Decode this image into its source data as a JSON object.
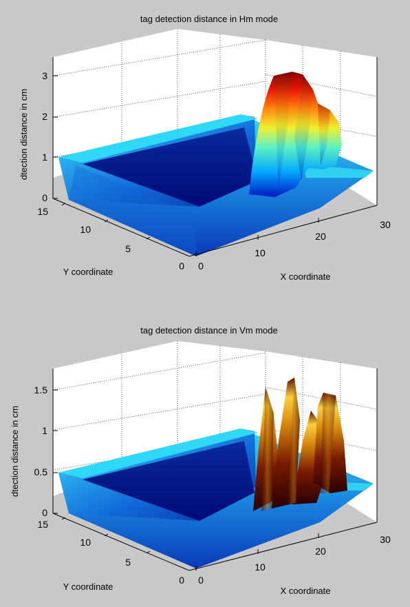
{
  "colors": {
    "figure_bg": "#c8c8c8",
    "axes_bg": "#ffffff",
    "grid": "#555555",
    "axis_line": "#000000"
  },
  "chart_data": [
    {
      "type": "surface",
      "colormap": "jet",
      "title": "tag detection distance in Hm mode",
      "xlabel": "X coordinate",
      "ylabel": "Y coordinate",
      "zlabel": "dtection distance in cm",
      "xlim": [
        0,
        30
      ],
      "ylim": [
        0,
        15
      ],
      "zlim": [
        0,
        3
      ],
      "xticks": [
        "0",
        "10",
        "20",
        "30"
      ],
      "yticks": [
        "0",
        "5",
        "10",
        "15"
      ],
      "zticks": [
        "0",
        "1",
        "2",
        "3"
      ],
      "grid": true,
      "base_plateau": {
        "x": [
          0,
          30
        ],
        "y": [
          0,
          15
        ],
        "z": 1,
        "floor_z": 0
      },
      "peak_region": {
        "x": [
          18,
          25
        ],
        "y": [
          2,
          14
        ],
        "z_max": 3
      },
      "ridges": [
        {
          "x": 19,
          "y": [
            2,
            13
          ],
          "z": 2.8
        },
        {
          "x": 21,
          "y": [
            2,
            14
          ],
          "z": 3.0
        },
        {
          "x": 23,
          "y": [
            3,
            13
          ],
          "z": 2.6
        },
        {
          "x": 24.5,
          "y": [
            4,
            12
          ],
          "z": 1.8
        }
      ]
    },
    {
      "type": "surface",
      "colormap": "hot",
      "title": "tag detection distance in Vm mode",
      "xlabel": "X coordinate",
      "ylabel": "Y coordinate",
      "zlabel": "dtection distance in cm",
      "xlim": [
        0,
        30
      ],
      "ylim": [
        0,
        15
      ],
      "zlim": [
        0,
        1.5
      ],
      "xticks": [
        "0",
        "10",
        "20",
        "30"
      ],
      "yticks": [
        "0",
        "5",
        "10",
        "15"
      ],
      "zticks": [
        "0",
        "0.5",
        "1",
        "1.5"
      ],
      "grid": true,
      "base_plateau": {
        "x": [
          0,
          30
        ],
        "y": [
          0,
          15
        ],
        "z": 0.5,
        "floor_z": 0
      },
      "peak_region": {
        "x": [
          18,
          25
        ],
        "y": [
          2,
          14
        ],
        "z_max": 1.5
      },
      "ridges": [
        {
          "x": 19,
          "y": [
            3,
            14
          ],
          "z": 1.4
        },
        {
          "x": 20.5,
          "y": [
            2,
            14
          ],
          "z": 1.5
        },
        {
          "x": 22.5,
          "y": [
            3,
            14
          ],
          "z": 1.45
        },
        {
          "x": 24,
          "y": [
            3,
            13
          ],
          "z": 1.4
        }
      ]
    }
  ]
}
